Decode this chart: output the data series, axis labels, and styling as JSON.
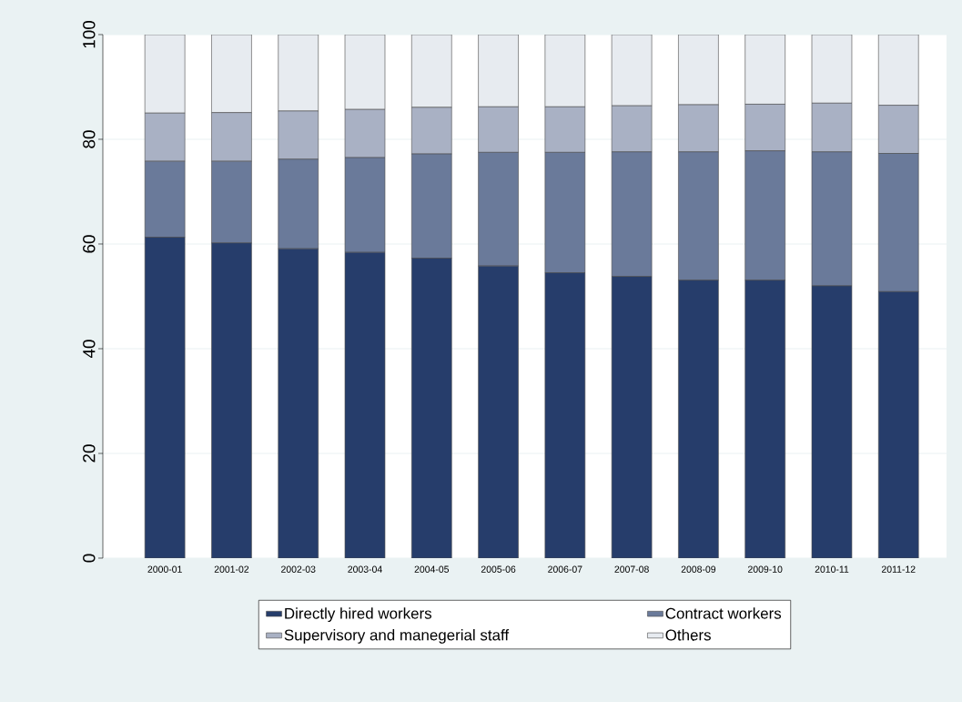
{
  "chart_data": {
    "type": "bar",
    "stacked": true,
    "categories": [
      "2000-01",
      "2001-02",
      "2002-03",
      "2003-04",
      "2004-05",
      "2005-06",
      "2006-07",
      "2007-08",
      "2008-09",
      "2009-10",
      "2010-11",
      "2011-12"
    ],
    "series": [
      {
        "name": "Directly hired workers",
        "color": "#263d6b",
        "values": [
          61.3,
          60.2,
          59.1,
          58.4,
          57.3,
          55.8,
          54.5,
          53.8,
          53.1,
          53.1,
          52.0,
          50.9
        ]
      },
      {
        "name": "Contract workers",
        "color": "#6a7a9a",
        "values": [
          14.5,
          15.6,
          17.1,
          18.1,
          19.9,
          21.7,
          23.0,
          23.8,
          24.5,
          24.7,
          25.6,
          26.4
        ]
      },
      {
        "name": "Supervisory and manegerial staff",
        "color": "#a9b1c4",
        "values": [
          9.2,
          9.3,
          9.2,
          9.2,
          8.9,
          8.7,
          8.7,
          8.8,
          9.0,
          8.9,
          9.3,
          9.2
        ]
      },
      {
        "name": "Others",
        "color": "#e7ebf0",
        "values": [
          15.0,
          14.9,
          14.6,
          14.3,
          13.9,
          13.8,
          13.8,
          13.6,
          13.4,
          13.3,
          13.1,
          13.5
        ]
      }
    ],
    "ylim": [
      0,
      100
    ],
    "yticks": [
      0,
      20,
      40,
      60,
      80,
      100
    ],
    "grid": "y",
    "legend": "bottom"
  }
}
